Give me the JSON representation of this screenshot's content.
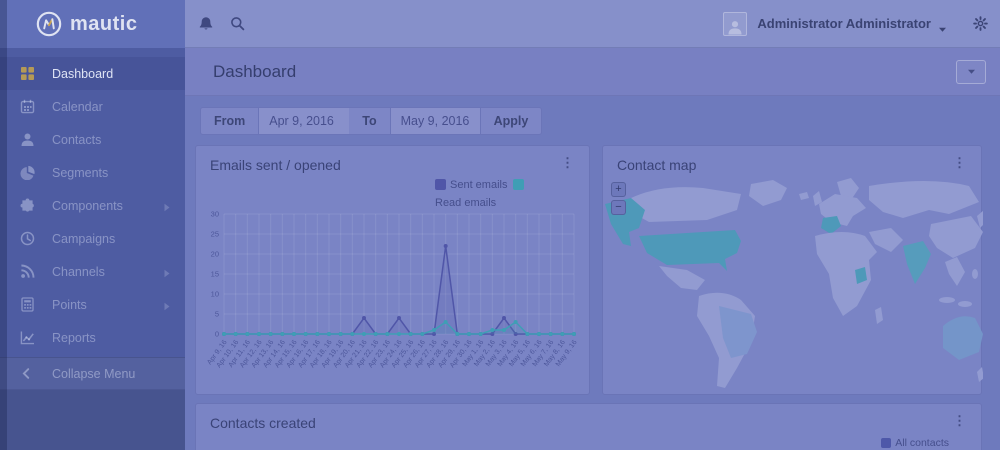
{
  "brand": {
    "name": "mautic"
  },
  "sidebar": {
    "items": [
      {
        "label": "Dashboard",
        "icon": "grid-icon",
        "active": true,
        "submenu": false
      },
      {
        "label": "Calendar",
        "icon": "calendar-icon",
        "active": false,
        "submenu": false
      },
      {
        "label": "Contacts",
        "icon": "user-icon",
        "active": false,
        "submenu": false
      },
      {
        "label": "Segments",
        "icon": "pie-icon",
        "active": false,
        "submenu": false
      },
      {
        "label": "Components",
        "icon": "puzzle-icon",
        "active": false,
        "submenu": true
      },
      {
        "label": "Campaigns",
        "icon": "clock-icon",
        "active": false,
        "submenu": false
      },
      {
        "label": "Channels",
        "icon": "rss-icon",
        "active": false,
        "submenu": true
      },
      {
        "label": "Points",
        "icon": "calculator-icon",
        "active": false,
        "submenu": true
      },
      {
        "label": "Reports",
        "icon": "line-chart-icon",
        "active": false,
        "submenu": false
      }
    ],
    "collapse_label": "Collapse Menu"
  },
  "topbar": {
    "user_name": "Administrator Administrator"
  },
  "page": {
    "title": "Dashboard"
  },
  "filter": {
    "from_label": "From",
    "from_value": "Apr 9, 2016",
    "to_label": "To",
    "to_value": "May 9, 2016",
    "apply_label": "Apply"
  },
  "panels": {
    "emails": {
      "title": "Emails sent / opened"
    },
    "map": {
      "title": "Contact map",
      "zoom_in": "+",
      "zoom_out": "−"
    },
    "contacts": {
      "title": "Contacts created",
      "legend_label": "All contacts",
      "legend_color": "#4e58a9"
    }
  },
  "chart_data": {
    "type": "line",
    "title": "Emails sent / opened",
    "categories": [
      "Apr 9, 16",
      "Apr 10, 16",
      "Apr 11, 16",
      "Apr 12, 16",
      "Apr 13, 16",
      "Apr 14, 16",
      "Apr 15, 16",
      "Apr 16, 16",
      "Apr 17, 16",
      "Apr 18, 16",
      "Apr 19, 16",
      "Apr 20, 16",
      "Apr 21, 16",
      "Apr 22, 16",
      "Apr 23, 16",
      "Apr 24, 16",
      "Apr 25, 16",
      "Apr 26, 16",
      "Apr 27, 16",
      "Apr 28, 16",
      "Apr 29, 16",
      "Apr 30, 16",
      "May 1, 16",
      "May 2, 16",
      "May 3, 16",
      "May 4, 16",
      "May 5, 16",
      "May 6, 16",
      "May 7, 16",
      "May 8, 16",
      "May 9, 16"
    ],
    "series": [
      {
        "name": "Sent emails",
        "color": "#5056a8",
        "values": [
          0,
          0,
          0,
          0,
          0,
          0,
          0,
          0,
          0,
          0,
          0,
          0,
          4,
          0,
          0,
          4,
          0,
          0,
          0,
          22,
          0,
          0,
          0,
          0,
          4,
          0,
          0,
          0,
          0,
          0,
          0
        ]
      },
      {
        "name": "Read emails",
        "color": "#3f9eb5",
        "values": [
          0,
          0,
          0,
          0,
          0,
          0,
          0,
          0,
          0,
          0,
          0,
          0,
          0,
          0,
          0,
          0,
          0,
          0,
          1,
          3,
          0,
          0,
          0,
          1,
          1,
          3,
          0,
          0,
          0,
          0,
          0
        ]
      }
    ],
    "ylim": [
      0,
      30
    ],
    "ytick_step": 5,
    "grid": true,
    "legend_position": "top-right"
  }
}
